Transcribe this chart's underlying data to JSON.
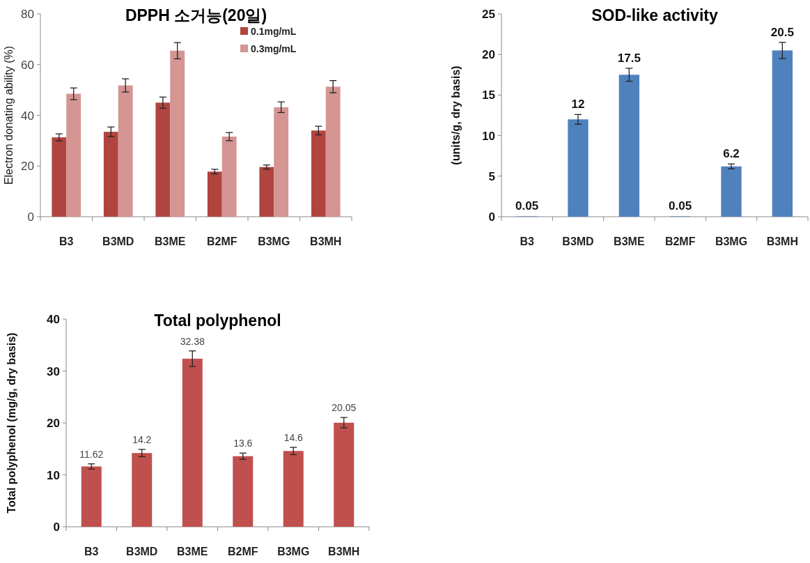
{
  "chart_data": [
    {
      "type": "bar",
      "title": "DPPH 소거능(20일)",
      "ylabel": "Electron donating ability (%)",
      "categories": [
        "B3",
        "B3MD",
        "B3ME",
        "B2MF",
        "B3MG",
        "B3MH"
      ],
      "ylim": [
        0,
        80
      ],
      "yticks": [
        0,
        20,
        40,
        60,
        80
      ],
      "legend": "top right",
      "series": [
        {
          "name": "0.1mg/mL",
          "color": "#b0453f",
          "values": [
            31.3,
            33.5,
            45,
            17.8,
            19.6,
            34
          ],
          "errors": [
            1.4,
            1.9,
            2.2,
            0.9,
            0.8,
            1.7
          ]
        },
        {
          "name": "0.3mg/mL",
          "color": "#d49593",
          "values": [
            48.5,
            51.8,
            65.5,
            31.6,
            43.2,
            51.3
          ],
          "errors": [
            2.3,
            2.6,
            3.2,
            1.6,
            2.1,
            2.4
          ]
        }
      ]
    },
    {
      "type": "bar",
      "title": "SOD-like activity",
      "ylabel": "(units/g, dry basis)",
      "categories": [
        "B3",
        "B3MD",
        "B3ME",
        "B2MF",
        "B3MG",
        "B3MH"
      ],
      "ylim": [
        0,
        25
      ],
      "yticks": [
        0,
        5,
        10,
        15,
        20,
        25
      ],
      "data_labels": true,
      "series": [
        {
          "color": "#4f81bd",
          "values": [
            0.05,
            12,
            17.5,
            0.05,
            6.2,
            20.5
          ],
          "errors": [
            null,
            0.6,
            0.8,
            null,
            0.3,
            1.0
          ]
        }
      ]
    },
    {
      "type": "bar",
      "title": "Total polyphenol",
      "ylabel": "Total polyphenol (mg/g, dry basis)",
      "categories": [
        "B3",
        "B3MD",
        "B3ME",
        "B2MF",
        "B3MG",
        "B3MH"
      ],
      "ylim": [
        0,
        40
      ],
      "yticks": [
        0,
        10,
        20,
        30,
        40
      ],
      "data_labels": true,
      "series": [
        {
          "color": "#c0504d",
          "values": [
            11.62,
            14.2,
            32.38,
            13.6,
            14.6,
            20.05
          ],
          "errors": [
            0.5,
            0.7,
            1.5,
            0.6,
            0.7,
            1.0
          ]
        }
      ]
    }
  ]
}
